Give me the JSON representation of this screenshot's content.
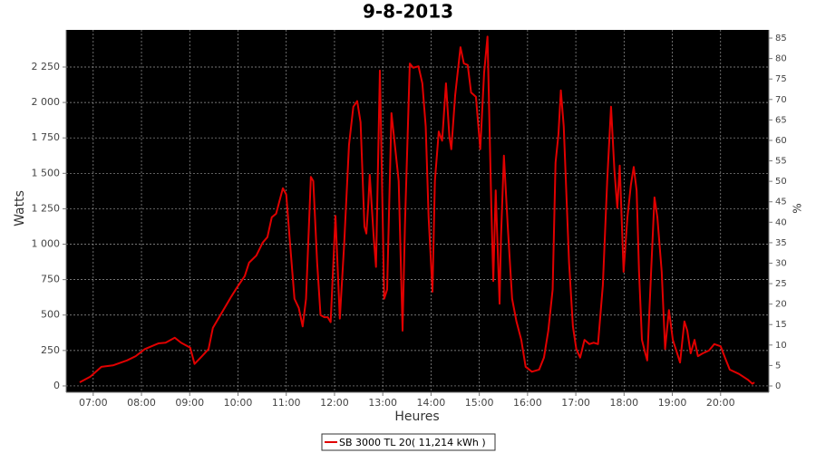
{
  "chart_data": {
    "type": "line",
    "title": "9-8-2013",
    "xlabel": "Heures",
    "ylabel": "Watts",
    "y2label": "%",
    "x": [
      6.72,
      6.94,
      7.17,
      7.41,
      7.7,
      7.88,
      8.07,
      8.35,
      8.5,
      8.69,
      8.82,
      9.01,
      9.1,
      9.24,
      9.39,
      9.48,
      9.67,
      9.86,
      9.99,
      10.14,
      10.23,
      10.38,
      10.51,
      10.61,
      10.7,
      10.79,
      10.93,
      11.0,
      11.08,
      11.17,
      11.26,
      11.34,
      11.41,
      11.51,
      11.56,
      11.64,
      11.71,
      11.79,
      11.86,
      11.92,
      12.02,
      12.11,
      12.2,
      12.3,
      12.39,
      12.47,
      12.54,
      12.62,
      12.66,
      12.7,
      12.73,
      12.81,
      12.86,
      12.94,
      13.03,
      13.09,
      13.18,
      13.26,
      13.33,
      13.41,
      13.46,
      13.56,
      13.63,
      13.74,
      13.82,
      13.89,
      13.95,
      14.03,
      14.08,
      14.16,
      14.23,
      14.31,
      14.38,
      14.42,
      14.5,
      14.61,
      14.68,
      14.76,
      14.83,
      14.93,
      15.02,
      15.1,
      15.17,
      15.25,
      15.29,
      15.34,
      15.42,
      15.45,
      15.51,
      15.59,
      15.68,
      15.77,
      15.87,
      15.96,
      16.09,
      16.24,
      16.34,
      16.43,
      16.52,
      16.58,
      16.64,
      16.69,
      16.75,
      16.86,
      16.94,
      17.01,
      17.09,
      17.18,
      17.28,
      17.37,
      17.46,
      17.56,
      17.65,
      17.73,
      17.8,
      17.86,
      17.91,
      17.99,
      18.07,
      18.14,
      18.2,
      18.26,
      18.31,
      18.37,
      18.44,
      18.48,
      18.56,
      18.63,
      18.69,
      18.78,
      18.85,
      18.93,
      19.01,
      19.1,
      19.16,
      19.25,
      19.31,
      19.38,
      19.46,
      19.53,
      19.63,
      19.76,
      19.87,
      20.0,
      20.09,
      20.19,
      20.38,
      20.56,
      20.66,
      20.7
    ],
    "series": [
      {
        "name": "SB 3000 TL 20( 11,214 kWh )",
        "color": "#e00000",
        "values": [
          25,
          65,
          135,
          145,
          180,
          210,
          260,
          300,
          305,
          340,
          305,
          270,
          155,
          205,
          260,
          410,
          520,
          630,
          700,
          775,
          870,
          920,
          1010,
          1050,
          1190,
          1215,
          1395,
          1350,
          1000,
          615,
          550,
          420,
          615,
          1475,
          1445,
          870,
          500,
          485,
          485,
          450,
          1200,
          475,
          1000,
          1700,
          1970,
          2010,
          1860,
          1125,
          1075,
          1285,
          1490,
          1060,
          840,
          2225,
          615,
          680,
          1925,
          1670,
          1445,
          390,
          1140,
          2275,
          2245,
          2255,
          2135,
          1830,
          1190,
          665,
          1445,
          1795,
          1730,
          2135,
          1760,
          1670,
          2050,
          2390,
          2275,
          2265,
          2070,
          2040,
          1670,
          2210,
          2465,
          1255,
          740,
          1380,
          580,
          1050,
          1625,
          1125,
          615,
          455,
          325,
          135,
          100,
          115,
          200,
          390,
          680,
          1575,
          1775,
          2085,
          1830,
          870,
          420,
          260,
          200,
          325,
          295,
          305,
          295,
          710,
          1445,
          1970,
          1520,
          1255,
          1555,
          805,
          1190,
          1415,
          1545,
          1380,
          805,
          325,
          230,
          180,
          805,
          1330,
          1190,
          805,
          260,
          535,
          325,
          230,
          165,
          455,
          390,
          230,
          325,
          210,
          230,
          250,
          295,
          280,
          200,
          115,
          85,
          45,
          15,
          25
        ]
      }
    ],
    "xlim": [
      6.44,
      21.0
    ],
    "xticks": [
      {
        "value": 7,
        "label": "07:00"
      },
      {
        "value": 8,
        "label": "08:00"
      },
      {
        "value": 9,
        "label": "09:00"
      },
      {
        "value": 10,
        "label": "10:00"
      },
      {
        "value": 11,
        "label": "11:00"
      },
      {
        "value": 12,
        "label": "12:00"
      },
      {
        "value": 13,
        "label": "13:00"
      },
      {
        "value": 14,
        "label": "14:00"
      },
      {
        "value": 15,
        "label": "15:00"
      },
      {
        "value": 16,
        "label": "16:00"
      },
      {
        "value": 17,
        "label": "17:00"
      },
      {
        "value": 18,
        "label": "18:00"
      },
      {
        "value": 19,
        "label": "19:00"
      },
      {
        "value": 20,
        "label": "20:00"
      }
    ],
    "ylim": [
      -45,
      2512
    ],
    "yticks": [
      0,
      250,
      500,
      750,
      {
        "value": 1000,
        "label": "1 000"
      },
      {
        "value": 1250,
        "label": "1 250"
      },
      {
        "value": 1500,
        "label": "1 500"
      },
      {
        "value": 1750,
        "label": "1 750"
      },
      {
        "value": 2000,
        "label": "2 000"
      },
      {
        "value": 2250,
        "label": "2 250"
      }
    ],
    "y2lim": [
      -1.55,
      87.0
    ],
    "y2ticks": [
      0,
      5,
      10,
      15,
      20,
      25,
      30,
      35,
      40,
      45,
      50,
      55,
      60,
      65,
      70,
      75,
      80,
      85
    ],
    "grid": true
  }
}
